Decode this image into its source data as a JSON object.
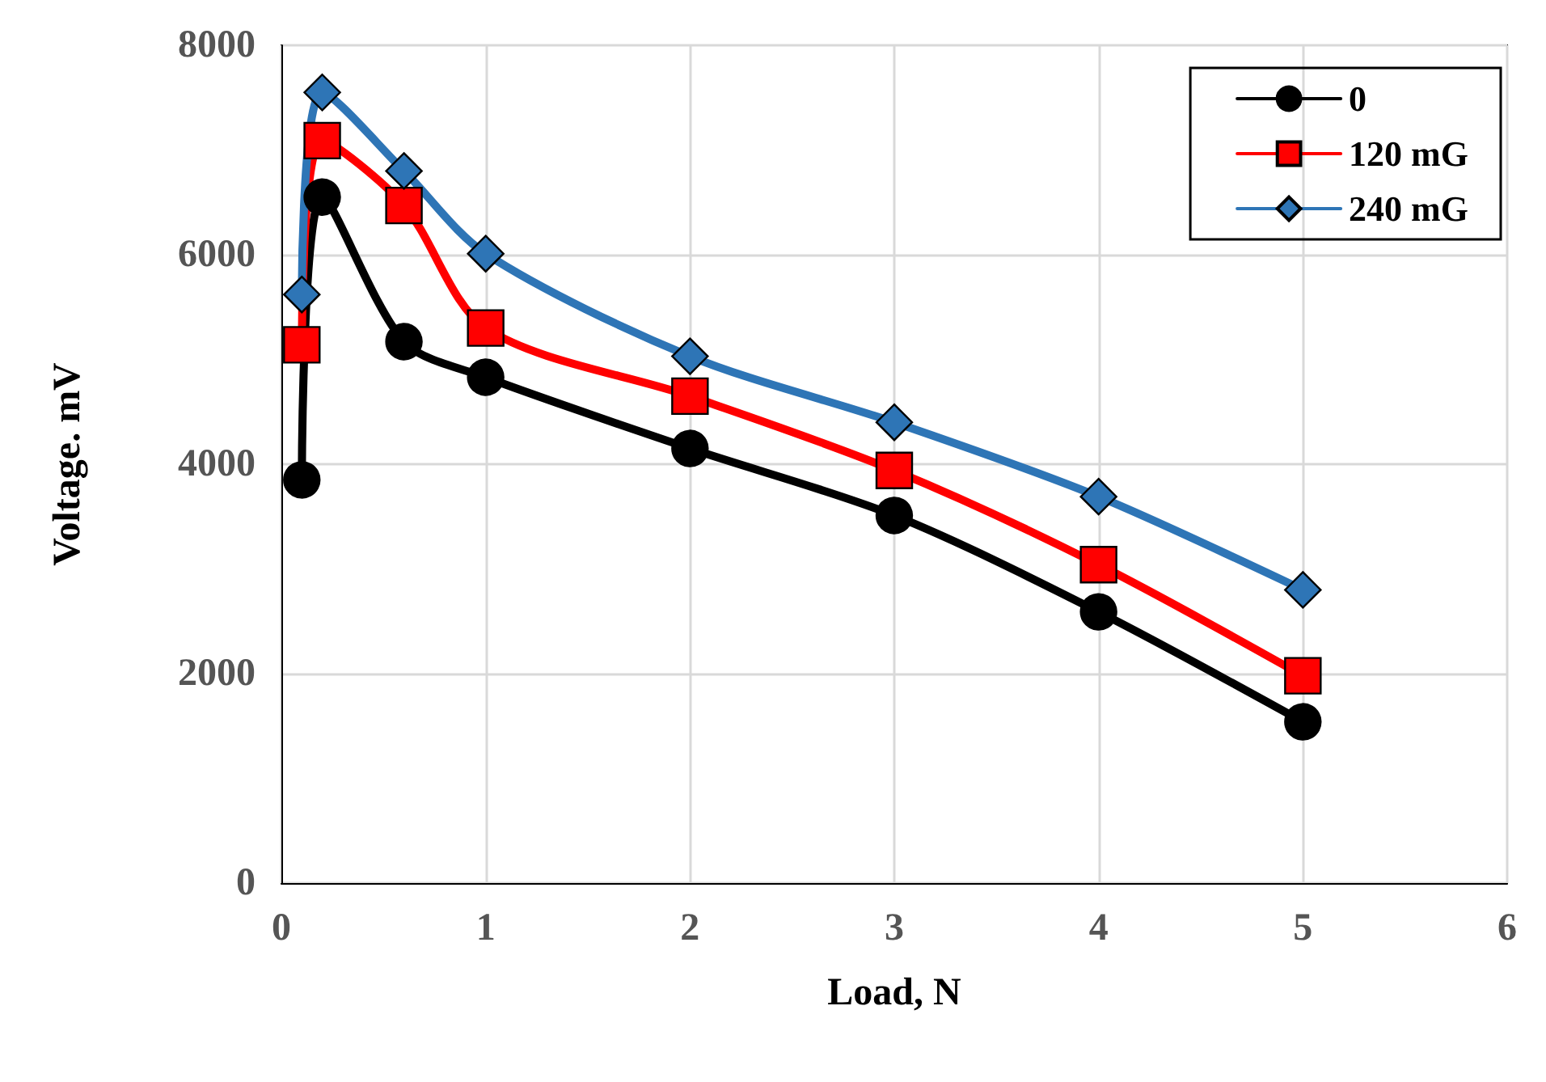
{
  "chart_data": {
    "type": "line",
    "xlabel": "Load, N",
    "ylabel": "Voltage. mV",
    "xlim": [
      0,
      6
    ],
    "xticks": [
      0,
      1,
      2,
      3,
      4,
      5,
      6
    ],
    "ylim": [
      0,
      8000
    ],
    "yticks": [
      0,
      2000,
      4000,
      6000,
      8000
    ],
    "grid": true,
    "legend": "top right",
    "line_style": "solid",
    "x": [
      0.1,
      0.2,
      0.6,
      1,
      2,
      3,
      4,
      5
    ],
    "series": [
      {
        "name": "0",
        "color": "#000000",
        "marker": "circle",
        "values": [
          3850,
          6550,
          5170,
          4830,
          4150,
          3510,
          2590,
          1540
        ]
      },
      {
        "name": "120 mG",
        "color": "#ff0000",
        "marker": "square",
        "values": [
          5140,
          7090,
          6470,
          5300,
          4650,
          3940,
          3040,
          1980
        ]
      },
      {
        "name": "240 mG",
        "color": "#2e75b6",
        "marker": "diamond",
        "values": [
          5620,
          7550,
          6800,
          6010,
          5030,
          4400,
          3690,
          2800
        ]
      }
    ]
  }
}
